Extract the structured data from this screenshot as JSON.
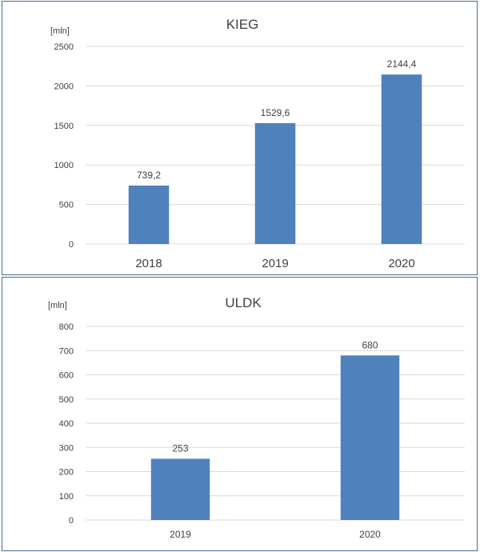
{
  "chart_data": [
    {
      "type": "bar",
      "title": "KIEG",
      "ylabel": "[mln]",
      "xlabel": "",
      "categories": [
        "2018",
        "2019",
        "2020"
      ],
      "values": [
        739.2,
        1529.6,
        2144.4
      ],
      "value_labels": [
        "739,2",
        "1529,6",
        "2144,4"
      ],
      "ylim": [
        0,
        2500
      ],
      "yticks": [
        "0",
        "500",
        "1000",
        "1500",
        "2000",
        "2500"
      ],
      "grid": true,
      "bar_color": "#4f81bd"
    },
    {
      "type": "bar",
      "title": "ULDK",
      "ylabel": "[mln]",
      "xlabel": "",
      "categories": [
        "2019",
        "2020"
      ],
      "values": [
        253,
        680
      ],
      "value_labels": [
        "253",
        "680"
      ],
      "ylim": [
        0,
        800
      ],
      "yticks": [
        "0",
        "100",
        "200",
        "300",
        "400",
        "500",
        "600",
        "700",
        "800"
      ],
      "grid": true,
      "bar_color": "#4f81bd"
    }
  ]
}
